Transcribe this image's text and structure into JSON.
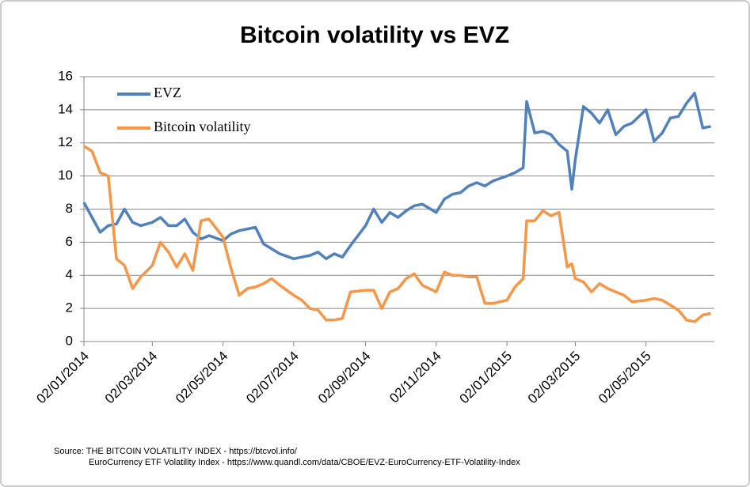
{
  "chart_data": {
    "type": "line",
    "title": "Bitcoin volatility vs EVZ",
    "source": [
      "Source: THE BITCOIN VOLATILITY INDEX - https://btcvol.info/",
      "EuroCurrency ETF Volatility Index - https://www.quandl.com/data/CBOE/EVZ-EuroCurrency-ETF-Volatility-Index"
    ],
    "x": [
      "2014-01-02",
      "2014-01-09",
      "2014-01-16",
      "2014-01-23",
      "2014-01-30",
      "2014-02-06",
      "2014-02-13",
      "2014-02-20",
      "2014-03-02",
      "2014-03-09",
      "2014-03-16",
      "2014-03-23",
      "2014-03-30",
      "2014-04-06",
      "2014-04-13",
      "2014-04-20",
      "2014-05-02",
      "2014-05-09",
      "2014-05-16",
      "2014-05-23",
      "2014-05-30",
      "2014-06-06",
      "2014-06-13",
      "2014-06-20",
      "2014-07-02",
      "2014-07-09",
      "2014-07-16",
      "2014-07-23",
      "2014-07-30",
      "2014-08-06",
      "2014-08-13",
      "2014-08-20",
      "2014-09-02",
      "2014-09-09",
      "2014-09-16",
      "2014-09-23",
      "2014-09-30",
      "2014-10-07",
      "2014-10-14",
      "2014-10-21",
      "2014-11-02",
      "2014-11-09",
      "2014-11-16",
      "2014-11-23",
      "2014-11-30",
      "2014-12-07",
      "2014-12-14",
      "2014-12-21",
      "2015-01-02",
      "2015-01-09",
      "2015-01-16",
      "2015-01-19",
      "2015-01-26",
      "2015-02-02",
      "2015-02-09",
      "2015-02-16",
      "2015-02-23",
      "2015-02-27",
      "2015-03-02",
      "2015-03-09",
      "2015-03-16",
      "2015-03-23",
      "2015-03-30",
      "2015-04-06",
      "2015-04-13",
      "2015-04-20",
      "2015-05-02",
      "2015-05-09",
      "2015-05-16",
      "2015-05-23",
      "2015-05-30",
      "2015-06-06",
      "2015-06-13",
      "2015-06-20",
      "2015-06-27"
    ],
    "series": [
      {
        "name": "EVZ",
        "color": "#4f81bd",
        "values": [
          8.4,
          7.5,
          6.6,
          7.0,
          7.1,
          8.0,
          7.2,
          7.0,
          7.2,
          7.5,
          7.0,
          7.0,
          7.4,
          6.6,
          6.2,
          6.4,
          6.1,
          6.5,
          6.7,
          6.8,
          6.9,
          5.9,
          5.6,
          5.3,
          5.0,
          5.1,
          5.2,
          5.4,
          5.0,
          5.3,
          5.1,
          5.8,
          7.0,
          8.0,
          7.2,
          7.8,
          7.5,
          7.9,
          8.2,
          8.3,
          7.8,
          8.6,
          8.9,
          9.0,
          9.4,
          9.6,
          9.4,
          9.7,
          10.0,
          10.2,
          10.5,
          14.5,
          12.6,
          12.7,
          12.5,
          11.9,
          11.5,
          9.2,
          11.0,
          14.2,
          13.8,
          13.2,
          14.0,
          12.5,
          13.0,
          13.2,
          14.0,
          12.1,
          12.6,
          13.5,
          13.6,
          14.4,
          15.0,
          12.9,
          13.0
        ]
      },
      {
        "name": "Bitcoin volatility",
        "color": "#f79646",
        "values": [
          11.8,
          11.5,
          10.2,
          10.0,
          5.0,
          4.6,
          3.2,
          3.9,
          4.6,
          6.0,
          5.4,
          4.5,
          5.3,
          4.3,
          7.3,
          7.4,
          6.3,
          4.4,
          2.8,
          3.2,
          3.3,
          3.5,
          3.8,
          3.4,
          2.8,
          2.5,
          2.0,
          1.9,
          1.3,
          1.3,
          1.4,
          3.0,
          3.1,
          3.1,
          2.0,
          3.0,
          3.2,
          3.8,
          4.1,
          3.4,
          3.0,
          4.2,
          4.0,
          4.0,
          3.9,
          3.9,
          2.3,
          2.3,
          2.5,
          3.3,
          3.8,
          7.3,
          7.3,
          7.9,
          7.6,
          7.8,
          4.5,
          4.7,
          3.8,
          3.6,
          3.0,
          3.5,
          3.2,
          3.0,
          2.8,
          2.4,
          2.5,
          2.6,
          2.5,
          2.2,
          1.9,
          1.3,
          1.2,
          1.6,
          1.7
        ]
      }
    ],
    "xlim": [
      "2014-01-02",
      "2015-06-30"
    ],
    "xticks": [
      {
        "value": "2014-01-02",
        "label": "02/01/2014"
      },
      {
        "value": "2014-03-02",
        "label": "02/03/2014"
      },
      {
        "value": "2014-05-02",
        "label": "02/05/2014"
      },
      {
        "value": "2014-07-02",
        "label": "02/07/2014"
      },
      {
        "value": "2014-09-02",
        "label": "02/09/2014"
      },
      {
        "value": "2014-11-02",
        "label": "02/11/2014"
      },
      {
        "value": "2015-01-02",
        "label": "02/01/2015"
      },
      {
        "value": "2015-03-02",
        "label": "02/03/2015"
      },
      {
        "value": "2015-05-02",
        "label": "02/05/2015"
      }
    ],
    "ylim": [
      0,
      16
    ],
    "yticks": [
      0,
      2,
      4,
      6,
      8,
      10,
      12,
      14,
      16
    ],
    "grid": true,
    "legend": "upper left"
  }
}
